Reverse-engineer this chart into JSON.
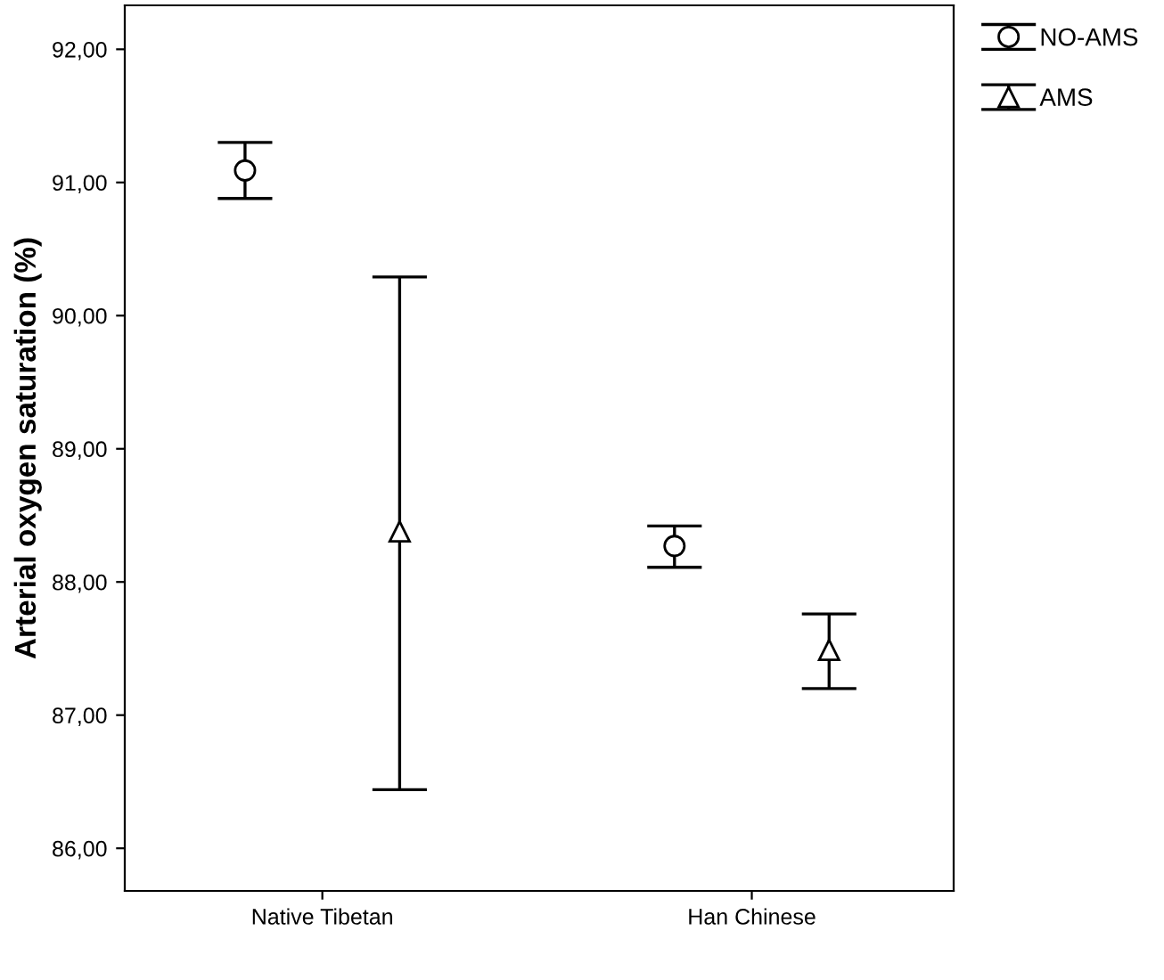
{
  "chart_data": {
    "type": "scatter",
    "ylabel": "Arterial oxygen saturation (%)",
    "categories": [
      "Native Tibetan",
      "Han Chinese"
    ],
    "series": [
      {
        "name": "NO-AMS",
        "color": "#000000",
        "marker": "circle",
        "values": [
          91.09,
          88.27
        ],
        "errors": [
          [
            90.88,
            91.3
          ],
          [
            88.11,
            88.42
          ]
        ]
      },
      {
        "name": "AMS",
        "color": "#000000",
        "marker": "triangle",
        "values": [
          88.38,
          87.49
        ],
        "errors": [
          [
            86.44,
            90.29
          ],
          [
            87.2,
            87.76
          ]
        ]
      }
    ],
    "ylim": [
      85.68,
      92.33
    ],
    "yticks": [
      {
        "value": 86,
        "label": "86,00"
      },
      {
        "value": 87,
        "label": "87,00"
      },
      {
        "value": 88,
        "label": "88,00"
      },
      {
        "value": 89,
        "label": "89,00"
      },
      {
        "value": 90,
        "label": "90,00"
      },
      {
        "value": 91,
        "label": "91,00"
      },
      {
        "value": 92,
        "label": "92,00"
      }
    ],
    "grid": false,
    "legend": "top right"
  }
}
